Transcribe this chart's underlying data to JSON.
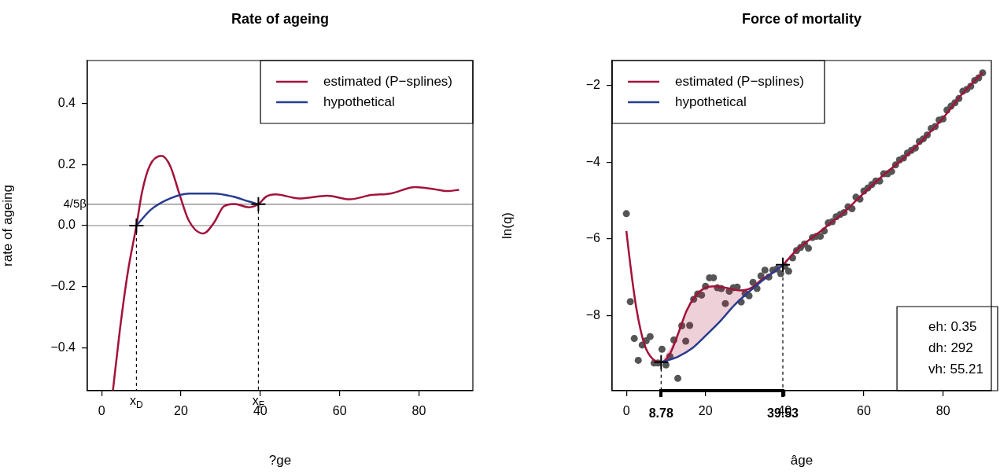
{
  "chart_data": [
    {
      "type": "line",
      "title": "Rate of ageing",
      "xlabel": "?ge",
      "ylabel": "rate of ageing",
      "xlim": [
        -3.6,
        93.6
      ],
      "ylim": [
        -0.54,
        0.54
      ],
      "xticks": [
        0,
        20,
        40,
        60,
        80
      ],
      "yticks": [
        {
          "value": -0.4,
          "label": "−0.4"
        },
        {
          "value": -0.2,
          "label": "−0.2"
        },
        {
          "value": 0,
          "label": "0.0"
        },
        {
          "value": 0.2,
          "label": "0.2"
        },
        {
          "value": 0.4,
          "label": "0.4"
        }
      ],
      "legend": "top right",
      "series": [
        {
          "name": "estimated (P−splines)",
          "color": "#a3123a",
          "x": [
            2.85,
            4.6,
            6.6,
            8.78,
            10.2,
            12.1,
            15.1,
            17.3,
            19.7,
            22,
            25.6,
            28.4,
            30.8,
            33.5,
            37.1,
            39.53,
            41.5,
            43.9,
            49.8,
            56.9,
            62.5,
            68,
            72.8,
            79.1,
            83.9,
            87.1,
            90.1
          ],
          "values": [
            -0.54,
            -0.342,
            -0.153,
            0,
            0.11,
            0.195,
            0.228,
            0.195,
            0.1,
            0.016,
            -0.026,
            0.011,
            0.063,
            0.071,
            0.06,
            0.07,
            0.095,
            0.102,
            0.089,
            0.098,
            0.086,
            0.1,
            0.105,
            0.126,
            0.119,
            0.113,
            0.117
          ]
        },
        {
          "name": "hypothetical",
          "color": "#283c8f",
          "x": [
            8.78,
            12.5,
            17.3,
            22,
            28.4,
            33.1,
            37.1,
            39.53
          ],
          "values": [
            0,
            0.053,
            0.089,
            0.105,
            0.105,
            0.095,
            0.079,
            0.07
          ]
        },
        {
          "type": "scatter",
          "marker": "cross",
          "color": "#000000",
          "x": [
            8.78,
            39.53
          ],
          "values": [
            0,
            0.07
          ]
        }
      ],
      "ref_lines": [
        {
          "axis": "y",
          "value": 0,
          "color": "#808080"
        },
        {
          "axis": "y",
          "value": 0.07,
          "label": "4/5β",
          "color": "#808080"
        },
        {
          "axis": "x",
          "value": 8.78,
          "label": "x$_{D}$",
          "line_style": "dashed"
        },
        {
          "axis": "x",
          "value": 39.53,
          "label": "x$_{F}$",
          "line_style": "dashed"
        }
      ]
    },
    {
      "type": "line",
      "title": "Force of mortality",
      "xlabel": "âge",
      "ylabel": "ln(q)",
      "xlim": [
        -3.6,
        92.2
      ],
      "ylim": [
        -9.95,
        -1.35
      ],
      "xticks": [
        0,
        20,
        40,
        60,
        80
      ],
      "yticks": [
        {
          "value": -8,
          "label": "−8"
        },
        {
          "value": -6,
          "label": "−6"
        },
        {
          "value": -4,
          "label": "−4"
        },
        {
          "value": -2,
          "label": "−2"
        }
      ],
      "legend": "top left",
      "series": [
        {
          "type": "scatter",
          "marker": "circle",
          "color": "#555555",
          "x": [
            0,
            1,
            2,
            3,
            4,
            5,
            6,
            7,
            8,
            9,
            10,
            11,
            12,
            13,
            14,
            15,
            16,
            17,
            18,
            19,
            20,
            21,
            22,
            23,
            24,
            25,
            26,
            27,
            28,
            29,
            30,
            31,
            32,
            33,
            34,
            35,
            36,
            37,
            38,
            39,
            40,
            41,
            42,
            43,
            44,
            45,
            46,
            47,
            48,
            49,
            50,
            51,
            52,
            53,
            54,
            55,
            56,
            57,
            58,
            59,
            60,
            61,
            62,
            63,
            64,
            65,
            66,
            67,
            68,
            69,
            70,
            71,
            72,
            73,
            74,
            75,
            76,
            77,
            78,
            79,
            80,
            81,
            82,
            83,
            84,
            85,
            86,
            87,
            88,
            89,
            90
          ],
          "values": [
            -5.34,
            -7.63,
            -8.59,
            -9.16,
            -8.76,
            -8.65,
            -8.54,
            -9.23,
            -9.23,
            -8.87,
            -9.28,
            -9.06,
            -8.63,
            -9.63,
            -8.26,
            -8.66,
            -8.25,
            -7.57,
            -7.43,
            -7.46,
            -7.23,
            -7.01,
            -7.01,
            -7.27,
            -7.29,
            -7.68,
            -7.36,
            -7.27,
            -7.25,
            -7.64,
            -7.42,
            -7.48,
            -7.13,
            -7.29,
            -6.96,
            -6.81,
            -6.99,
            -6.81,
            -6.78,
            -6.9,
            -6.71,
            -6.84,
            -6.49,
            -6.3,
            -6.22,
            -6.13,
            -6.24,
            -5.96,
            -5.93,
            -5.93,
            -5.79,
            -5.58,
            -5.55,
            -5.42,
            -5.36,
            -5.31,
            -5.16,
            -5.21,
            -4.91,
            -4.96,
            -4.75,
            -4.67,
            -4.58,
            -4.49,
            -4.49,
            -4.3,
            -4.3,
            -4.24,
            -4.07,
            -3.94,
            -3.89,
            -3.76,
            -3.69,
            -3.63,
            -3.46,
            -3.39,
            -3.29,
            -3.12,
            -3.07,
            -2.9,
            -2.87,
            -2.64,
            -2.54,
            -2.45,
            -2.34,
            -2.15,
            -2.1,
            -2.02,
            -1.87,
            -1.8,
            -1.67
          ]
        },
        {
          "name": "estimated (P−splines)",
          "color": "#a3123a",
          "x": [
            0,
            1,
            2.5,
            4.6,
            6.7,
            8.78,
            11,
            13.1,
            15.2,
            17.4,
            19.9,
            22,
            25.2,
            28.7,
            31.6,
            34.4,
            37.2,
            39.53,
            42.9,
            45,
            50,
            55,
            60,
            65,
            70,
            75,
            80,
            85,
            90
          ],
          "values": [
            -5.79,
            -6.67,
            -7.79,
            -8.76,
            -9.13,
            -9.21,
            -8.99,
            -8.46,
            -7.87,
            -7.49,
            -7.27,
            -7.23,
            -7.27,
            -7.34,
            -7.27,
            -7.04,
            -6.86,
            -6.67,
            -6.3,
            -6.12,
            -5.72,
            -5.3,
            -4.8,
            -4.33,
            -3.9,
            -3.4,
            -2.85,
            -2.2,
            -1.67
          ]
        },
        {
          "name": "hypothetical",
          "color": "#283c8f",
          "x": [
            8.78,
            13.1,
            16.7,
            20.2,
            23.8,
            27.3,
            30.9,
            34.4,
            37.2,
            39.53
          ],
          "values": [
            -9.21,
            -9.06,
            -8.84,
            -8.5,
            -8.13,
            -7.72,
            -7.38,
            -7.08,
            -6.86,
            -6.67
          ],
          "lower": [
            -9.21,
            -9.06,
            -8.84,
            -8.5,
            -8.13,
            -7.72,
            -7.38,
            -7.08,
            -6.86,
            -6.67
          ],
          "upper": [
            -9.21,
            -8.46,
            -7.58,
            -7.26,
            -7.25,
            -7.31,
            -7.29,
            -7.04,
            -6.86,
            -6.67
          ]
        },
        {
          "type": "scatter",
          "marker": "cross",
          "color": "#000000",
          "x": [
            8.78,
            39.53
          ],
          "values": [
            -9.21,
            -6.67
          ]
        }
      ],
      "ref_lines": [
        {
          "axis": "x",
          "value": 8.78,
          "label": "8.78",
          "line_style": "dashed"
        },
        {
          "axis": "x",
          "value": 39.53,
          "label": "39.53",
          "line_style": "dashed"
        }
      ],
      "annotations": [
        "eh: 0.35",
        "dh: 292",
        "vh: 55.21"
      ]
    }
  ]
}
